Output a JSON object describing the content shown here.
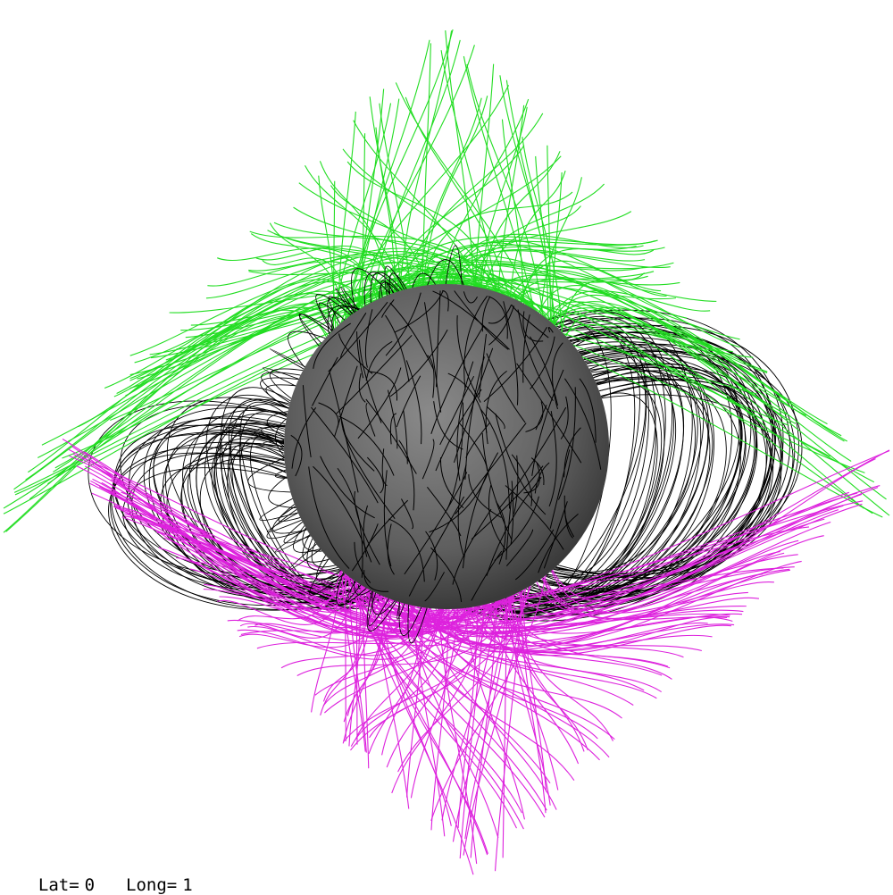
{
  "view": {
    "lat_label": "Lat=",
    "lat_value": "0",
    "long_label": "Long=",
    "long_value": "1"
  },
  "colors": {
    "background": "#ffffff",
    "open_field_north": "#22dd22",
    "open_field_south": "#dd22dd",
    "closed_field": "#000000",
    "solar_surface": "#6a6a6a"
  },
  "icons": {
    "sun": "solar-sphere-icon"
  }
}
